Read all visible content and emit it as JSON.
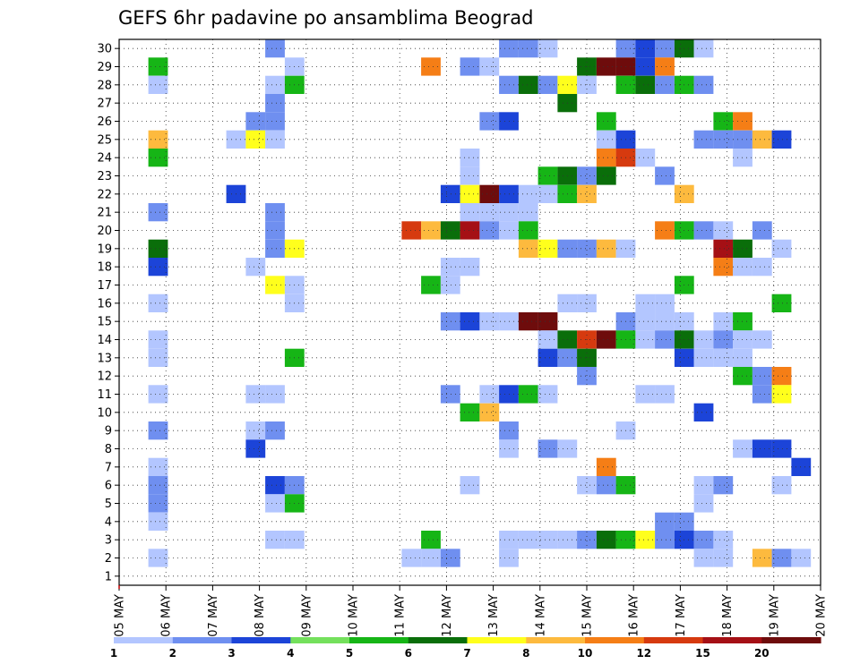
{
  "chart_data": {
    "type": "heatmap",
    "title": "GEFS 6hr padavine po ansamblima Beograd",
    "xlabel": "",
    "ylabel": "",
    "x_tick_labels": [
      "05 MAY",
      "06 MAY",
      "07 MAY",
      "08 MAY",
      "09 MAY",
      "10 MAY",
      "11 MAY",
      "12 MAY",
      "13 MAY",
      "14 MAY",
      "15 MAY",
      "16 MAY",
      "17 MAY",
      "18 MAY",
      "19 MAY",
      "20 MAY"
    ],
    "y_tick_labels": [
      "1",
      "2",
      "3",
      "4",
      "5",
      "6",
      "7",
      "8",
      "9",
      "10",
      "11",
      "12",
      "13",
      "14",
      "15",
      "16",
      "17",
      "18",
      "19",
      "20",
      "21",
      "22",
      "23",
      "24",
      "25",
      "26",
      "27",
      "28",
      "29",
      "30"
    ],
    "xlim": [
      0,
      60
    ],
    "ylim": [
      0.5,
      30.5
    ],
    "grid": true,
    "x_unit": "6-hour step from 05 MAY 00Z",
    "y_unit": "ensemble member",
    "colorbar": {
      "boundaries": [
        1,
        2,
        3,
        4,
        5,
        6,
        7,
        8,
        10,
        12,
        15,
        20
      ],
      "tick_labels": [
        "1",
        "2",
        "3",
        "4",
        "5",
        "6",
        "7",
        "8",
        "10",
        "12",
        "15",
        "20"
      ],
      "colors": [
        "#b3c6ff",
        "#6f8ff0",
        "#1c44d8",
        "#74e05c",
        "#16b516",
        "#0a6e0a",
        "#ffff1c",
        "#fdba3e",
        "#f57e16",
        "#d63a0f",
        "#a51015",
        "#6e0c0c"
      ],
      "placement": "bottom"
    },
    "cells": [
      {
        "x": 8,
        "y": 30,
        "c": 2
      },
      {
        "x": 20,
        "y": 30,
        "c": 2
      },
      {
        "x": 21,
        "y": 30,
        "c": 2
      },
      {
        "x": 22,
        "y": 30,
        "c": 1
      },
      {
        "x": 26,
        "y": 30,
        "c": 2
      },
      {
        "x": 27,
        "y": 30,
        "c": 3
      },
      {
        "x": 28,
        "y": 30,
        "c": 2
      },
      {
        "x": 29,
        "y": 30,
        "c": 6
      },
      {
        "x": 30,
        "y": 30,
        "c": 1
      },
      {
        "x": 2,
        "y": 29,
        "c": 5
      },
      {
        "x": 9,
        "y": 29,
        "c": 1
      },
      {
        "x": 16,
        "y": 29,
        "c": 9
      },
      {
        "x": 18,
        "y": 29,
        "c": 2
      },
      {
        "x": 19,
        "y": 29,
        "c": 1
      },
      {
        "x": 24,
        "y": 29,
        "c": 6
      },
      {
        "x": 25,
        "y": 29,
        "c": 12
      },
      {
        "x": 26,
        "y": 29,
        "c": 12
      },
      {
        "x": 27,
        "y": 29,
        "c": 3
      },
      {
        "x": 28,
        "y": 29,
        "c": 9
      },
      {
        "x": 2,
        "y": 28,
        "c": 1
      },
      {
        "x": 8,
        "y": 28,
        "c": 1
      },
      {
        "x": 9,
        "y": 28,
        "c": 5
      },
      {
        "x": 20,
        "y": 28,
        "c": 2
      },
      {
        "x": 21,
        "y": 28,
        "c": 6
      },
      {
        "x": 22,
        "y": 28,
        "c": 2
      },
      {
        "x": 23,
        "y": 28,
        "c": 7
      },
      {
        "x": 24,
        "y": 28,
        "c": 1
      },
      {
        "x": 26,
        "y": 28,
        "c": 5
      },
      {
        "x": 27,
        "y": 28,
        "c": 6
      },
      {
        "x": 28,
        "y": 28,
        "c": 2
      },
      {
        "x": 29,
        "y": 28,
        "c": 5
      },
      {
        "x": 30,
        "y": 28,
        "c": 2
      },
      {
        "x": 8,
        "y": 27,
        "c": 2
      },
      {
        "x": 23,
        "y": 27,
        "c": 6
      },
      {
        "x": 7,
        "y": 26,
        "c": 2
      },
      {
        "x": 8,
        "y": 26,
        "c": 2
      },
      {
        "x": 19,
        "y": 26,
        "c": 2
      },
      {
        "x": 20,
        "y": 26,
        "c": 3
      },
      {
        "x": 25,
        "y": 26,
        "c": 5
      },
      {
        "x": 31,
        "y": 26,
        "c": 5
      },
      {
        "x": 32,
        "y": 26,
        "c": 9
      },
      {
        "x": 2,
        "y": 25,
        "c": 8
      },
      {
        "x": 6,
        "y": 25,
        "c": 1
      },
      {
        "x": 7,
        "y": 25,
        "c": 7
      },
      {
        "x": 8,
        "y": 25,
        "c": 1
      },
      {
        "x": 25,
        "y": 25,
        "c": 1
      },
      {
        "x": 26,
        "y": 25,
        "c": 3
      },
      {
        "x": 30,
        "y": 25,
        "c": 2
      },
      {
        "x": 31,
        "y": 25,
        "c": 2
      },
      {
        "x": 32,
        "y": 25,
        "c": 2
      },
      {
        "x": 33,
        "y": 25,
        "c": 8
      },
      {
        "x": 34,
        "y": 25,
        "c": 3
      },
      {
        "x": 2,
        "y": 24,
        "c": 5
      },
      {
        "x": 18,
        "y": 24,
        "c": 1
      },
      {
        "x": 25,
        "y": 24,
        "c": 9
      },
      {
        "x": 26,
        "y": 24,
        "c": 10
      },
      {
        "x": 27,
        "y": 24,
        "c": 1
      },
      {
        "x": 32,
        "y": 24,
        "c": 1
      },
      {
        "x": 18,
        "y": 23,
        "c": 1
      },
      {
        "x": 22,
        "y": 23,
        "c": 5
      },
      {
        "x": 23,
        "y": 23,
        "c": 6
      },
      {
        "x": 24,
        "y": 23,
        "c": 2
      },
      {
        "x": 25,
        "y": 23,
        "c": 6
      },
      {
        "x": 28,
        "y": 23,
        "c": 2
      },
      {
        "x": 6,
        "y": 22,
        "c": 3
      },
      {
        "x": 17,
        "y": 22,
        "c": 3
      },
      {
        "x": 18,
        "y": 22,
        "c": 7
      },
      {
        "x": 19,
        "y": 22,
        "c": 12
      },
      {
        "x": 20,
        "y": 22,
        "c": 3
      },
      {
        "x": 21,
        "y": 22,
        "c": 1
      },
      {
        "x": 22,
        "y": 22,
        "c": 1
      },
      {
        "x": 23,
        "y": 22,
        "c": 5
      },
      {
        "x": 24,
        "y": 22,
        "c": 8
      },
      {
        "x": 29,
        "y": 22,
        "c": 8
      },
      {
        "x": 2,
        "y": 21,
        "c": 2
      },
      {
        "x": 8,
        "y": 21,
        "c": 2
      },
      {
        "x": 18,
        "y": 21,
        "c": 1
      },
      {
        "x": 19,
        "y": 21,
        "c": 1
      },
      {
        "x": 20,
        "y": 21,
        "c": 1
      },
      {
        "x": 21,
        "y": 21,
        "c": 1
      },
      {
        "x": 8,
        "y": 20,
        "c": 2
      },
      {
        "x": 15,
        "y": 20,
        "c": 10
      },
      {
        "x": 16,
        "y": 20,
        "c": 8
      },
      {
        "x": 17,
        "y": 20,
        "c": 6
      },
      {
        "x": 18,
        "y": 20,
        "c": 11
      },
      {
        "x": 19,
        "y": 20,
        "c": 2
      },
      {
        "x": 20,
        "y": 20,
        "c": 1
      },
      {
        "x": 21,
        "y": 20,
        "c": 5
      },
      {
        "x": 28,
        "y": 20,
        "c": 9
      },
      {
        "x": 29,
        "y": 20,
        "c": 5
      },
      {
        "x": 30,
        "y": 20,
        "c": 2
      },
      {
        "x": 31,
        "y": 20,
        "c": 1
      },
      {
        "x": 33,
        "y": 20,
        "c": 2
      },
      {
        "x": 2,
        "y": 19,
        "c": 6
      },
      {
        "x": 8,
        "y": 19,
        "c": 2
      },
      {
        "x": 9,
        "y": 19,
        "c": 7
      },
      {
        "x": 21,
        "y": 19,
        "c": 8
      },
      {
        "x": 22,
        "y": 19,
        "c": 7
      },
      {
        "x": 23,
        "y": 19,
        "c": 2
      },
      {
        "x": 24,
        "y": 19,
        "c": 2
      },
      {
        "x": 25,
        "y": 19,
        "c": 8
      },
      {
        "x": 26,
        "y": 19,
        "c": 1
      },
      {
        "x": 31,
        "y": 19,
        "c": 11
      },
      {
        "x": 32,
        "y": 19,
        "c": 6
      },
      {
        "x": 34,
        "y": 19,
        "c": 1
      },
      {
        "x": 2,
        "y": 18,
        "c": 3
      },
      {
        "x": 7,
        "y": 18,
        "c": 1
      },
      {
        "x": 17,
        "y": 18,
        "c": 1
      },
      {
        "x": 18,
        "y": 18,
        "c": 1
      },
      {
        "x": 31,
        "y": 18,
        "c": 9
      },
      {
        "x": 32,
        "y": 18,
        "c": 1
      },
      {
        "x": 33,
        "y": 18,
        "c": 1
      },
      {
        "x": 16,
        "y": 17,
        "c": 5
      },
      {
        "x": 17,
        "y": 17,
        "c": 1
      },
      {
        "x": 8,
        "y": 17,
        "c": 7
      },
      {
        "x": 9,
        "y": 17,
        "c": 1
      },
      {
        "x": 29,
        "y": 17,
        "c": 5
      },
      {
        "x": 2,
        "y": 16,
        "c": 1
      },
      {
        "x": 9,
        "y": 16,
        "c": 1
      },
      {
        "x": 23,
        "y": 16,
        "c": 1
      },
      {
        "x": 24,
        "y": 16,
        "c": 1
      },
      {
        "x": 27,
        "y": 16,
        "c": 1
      },
      {
        "x": 28,
        "y": 16,
        "c": 1
      },
      {
        "x": 34,
        "y": 16,
        "c": 5
      },
      {
        "x": 17,
        "y": 15,
        "c": 2
      },
      {
        "x": 18,
        "y": 15,
        "c": 3
      },
      {
        "x": 19,
        "y": 15,
        "c": 1
      },
      {
        "x": 20,
        "y": 15,
        "c": 1
      },
      {
        "x": 21,
        "y": 15,
        "c": 12
      },
      {
        "x": 22,
        "y": 15,
        "c": 12
      },
      {
        "x": 26,
        "y": 15,
        "c": 2
      },
      {
        "x": 27,
        "y": 15,
        "c": 1
      },
      {
        "x": 28,
        "y": 15,
        "c": 1
      },
      {
        "x": 29,
        "y": 15,
        "c": 1
      },
      {
        "x": 31,
        "y": 15,
        "c": 1
      },
      {
        "x": 32,
        "y": 15,
        "c": 5
      },
      {
        "x": 2,
        "y": 14,
        "c": 1
      },
      {
        "x": 22,
        "y": 14,
        "c": 1
      },
      {
        "x": 23,
        "y": 14,
        "c": 6
      },
      {
        "x": 24,
        "y": 14,
        "c": 10
      },
      {
        "x": 25,
        "y": 14,
        "c": 12
      },
      {
        "x": 26,
        "y": 14,
        "c": 5
      },
      {
        "x": 27,
        "y": 14,
        "c": 1
      },
      {
        "x": 28,
        "y": 14,
        "c": 2
      },
      {
        "x": 29,
        "y": 14,
        "c": 6
      },
      {
        "x": 30,
        "y": 14,
        "c": 1
      },
      {
        "x": 31,
        "y": 14,
        "c": 2
      },
      {
        "x": 32,
        "y": 14,
        "c": 1
      },
      {
        "x": 33,
        "y": 14,
        "c": 1
      },
      {
        "x": 2,
        "y": 13,
        "c": 1
      },
      {
        "x": 9,
        "y": 13,
        "c": 5
      },
      {
        "x": 22,
        "y": 13,
        "c": 3
      },
      {
        "x": 23,
        "y": 13,
        "c": 2
      },
      {
        "x": 24,
        "y": 13,
        "c": 6
      },
      {
        "x": 29,
        "y": 13,
        "c": 3
      },
      {
        "x": 30,
        "y": 13,
        "c": 1
      },
      {
        "x": 31,
        "y": 13,
        "c": 1
      },
      {
        "x": 32,
        "y": 13,
        "c": 1
      },
      {
        "x": 24,
        "y": 12,
        "c": 2
      },
      {
        "x": 32,
        "y": 12,
        "c": 5
      },
      {
        "x": 33,
        "y": 12,
        "c": 2
      },
      {
        "x": 34,
        "y": 12,
        "c": 9
      },
      {
        "x": 2,
        "y": 11,
        "c": 1
      },
      {
        "x": 7,
        "y": 11,
        "c": 1
      },
      {
        "x": 8,
        "y": 11,
        "c": 1
      },
      {
        "x": 17,
        "y": 11,
        "c": 2
      },
      {
        "x": 19,
        "y": 11,
        "c": 1
      },
      {
        "x": 20,
        "y": 11,
        "c": 3
      },
      {
        "x": 21,
        "y": 11,
        "c": 5
      },
      {
        "x": 22,
        "y": 11,
        "c": 1
      },
      {
        "x": 27,
        "y": 11,
        "c": 1
      },
      {
        "x": 28,
        "y": 11,
        "c": 1
      },
      {
        "x": 33,
        "y": 11,
        "c": 2
      },
      {
        "x": 34,
        "y": 11,
        "c": 7
      },
      {
        "x": 18,
        "y": 10,
        "c": 5
      },
      {
        "x": 19,
        "y": 10,
        "c": 8
      },
      {
        "x": 30,
        "y": 10,
        "c": 3
      },
      {
        "x": 2,
        "y": 9,
        "c": 2
      },
      {
        "x": 7,
        "y": 9,
        "c": 1
      },
      {
        "x": 8,
        "y": 9,
        "c": 2
      },
      {
        "x": 20,
        "y": 9,
        "c": 2
      },
      {
        "x": 26,
        "y": 9,
        "c": 1
      },
      {
        "x": 7,
        "y": 8,
        "c": 3
      },
      {
        "x": 20,
        "y": 8,
        "c": 1
      },
      {
        "x": 22,
        "y": 8,
        "c": 2
      },
      {
        "x": 23,
        "y": 8,
        "c": 1
      },
      {
        "x": 32,
        "y": 8,
        "c": 1
      },
      {
        "x": 33,
        "y": 8,
        "c": 3
      },
      {
        "x": 34,
        "y": 8,
        "c": 3
      },
      {
        "x": 2,
        "y": 7,
        "c": 1
      },
      {
        "x": 25,
        "y": 7,
        "c": 9
      },
      {
        "x": 35,
        "y": 7,
        "c": 3
      },
      {
        "x": 2,
        "y": 6,
        "c": 2
      },
      {
        "x": 8,
        "y": 6,
        "c": 3
      },
      {
        "x": 9,
        "y": 6,
        "c": 2
      },
      {
        "x": 18,
        "y": 6,
        "c": 1
      },
      {
        "x": 24,
        "y": 6,
        "c": 1
      },
      {
        "x": 25,
        "y": 6,
        "c": 2
      },
      {
        "x": 26,
        "y": 6,
        "c": 5
      },
      {
        "x": 30,
        "y": 6,
        "c": 1
      },
      {
        "x": 31,
        "y": 6,
        "c": 2
      },
      {
        "x": 34,
        "y": 6,
        "c": 1
      },
      {
        "x": 2,
        "y": 5,
        "c": 2
      },
      {
        "x": 8,
        "y": 5,
        "c": 1
      },
      {
        "x": 9,
        "y": 5,
        "c": 5
      },
      {
        "x": 30,
        "y": 5,
        "c": 1
      },
      {
        "x": 2,
        "y": 4,
        "c": 1
      },
      {
        "x": 28,
        "y": 4,
        "c": 2
      },
      {
        "x": 29,
        "y": 4,
        "c": 2
      },
      {
        "x": 8,
        "y": 3,
        "c": 1
      },
      {
        "x": 9,
        "y": 3,
        "c": 1
      },
      {
        "x": 16,
        "y": 3,
        "c": 5
      },
      {
        "x": 20,
        "y": 3,
        "c": 1
      },
      {
        "x": 21,
        "y": 3,
        "c": 1
      },
      {
        "x": 22,
        "y": 3,
        "c": 1
      },
      {
        "x": 23,
        "y": 3,
        "c": 1
      },
      {
        "x": 24,
        "y": 3,
        "c": 2
      },
      {
        "x": 25,
        "y": 3,
        "c": 6
      },
      {
        "x": 26,
        "y": 3,
        "c": 5
      },
      {
        "x": 27,
        "y": 3,
        "c": 7
      },
      {
        "x": 28,
        "y": 3,
        "c": 2
      },
      {
        "x": 29,
        "y": 3,
        "c": 3
      },
      {
        "x": 30,
        "y": 3,
        "c": 2
      },
      {
        "x": 31,
        "y": 3,
        "c": 1
      },
      {
        "x": 2,
        "y": 2,
        "c": 1
      },
      {
        "x": 15,
        "y": 2,
        "c": 1
      },
      {
        "x": 16,
        "y": 2,
        "c": 1
      },
      {
        "x": 17,
        "y": 2,
        "c": 2
      },
      {
        "x": 20,
        "y": 2,
        "c": 1
      },
      {
        "x": 30,
        "y": 2,
        "c": 1
      },
      {
        "x": 31,
        "y": 2,
        "c": 1
      },
      {
        "x": 33,
        "y": 2,
        "c": 8
      },
      {
        "x": 34,
        "y": 2,
        "c": 2
      },
      {
        "x": 35,
        "y": 2,
        "c": 1
      }
    ]
  }
}
